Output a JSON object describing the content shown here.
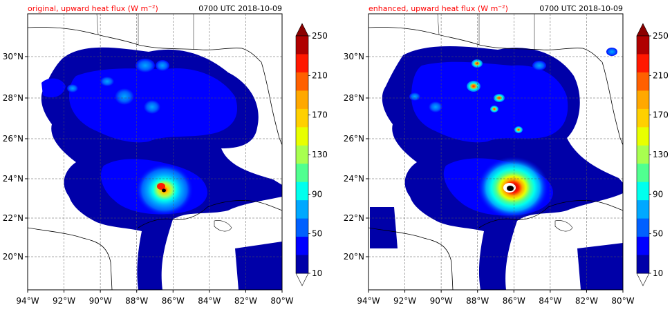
{
  "panels": [
    {
      "title_left": "original, upward heat flux (W m",
      "title_sup": "−2",
      "title_close": ")",
      "title_right": "0700 UTC 2018-10-09",
      "variant": "original"
    },
    {
      "title_left": "enhanced, upward heat flux (W m",
      "title_sup": "−2",
      "title_close": ")",
      "title_right": "0700 UTC 2018-10-09",
      "variant": "enhanced"
    }
  ],
  "x_ticks": [
    "94°W",
    "92°W",
    "90°W",
    "88°W",
    "86°W",
    "84°W",
    "82°W",
    "80°W"
  ],
  "y_ticks": [
    "30°N",
    "28°N",
    "26°N",
    "24°N",
    "22°N",
    "20°N"
  ],
  "colorbar": {
    "labels": [
      "250",
      "210",
      "170",
      "130",
      "90",
      "50",
      "10"
    ],
    "colors": [
      "#0000a8",
      "#0000ff",
      "#0060ff",
      "#00a8ff",
      "#00ffee",
      "#50ff90",
      "#a8ff50",
      "#e8ff00",
      "#ffd000",
      "#ffa800",
      "#ff6000",
      "#ff1800",
      "#b00000"
    ],
    "extend_top_color": "#8b0000"
  },
  "colors": {
    "title_red": "#ff0000",
    "land_line": "#000000",
    "grid": "#555555"
  }
}
